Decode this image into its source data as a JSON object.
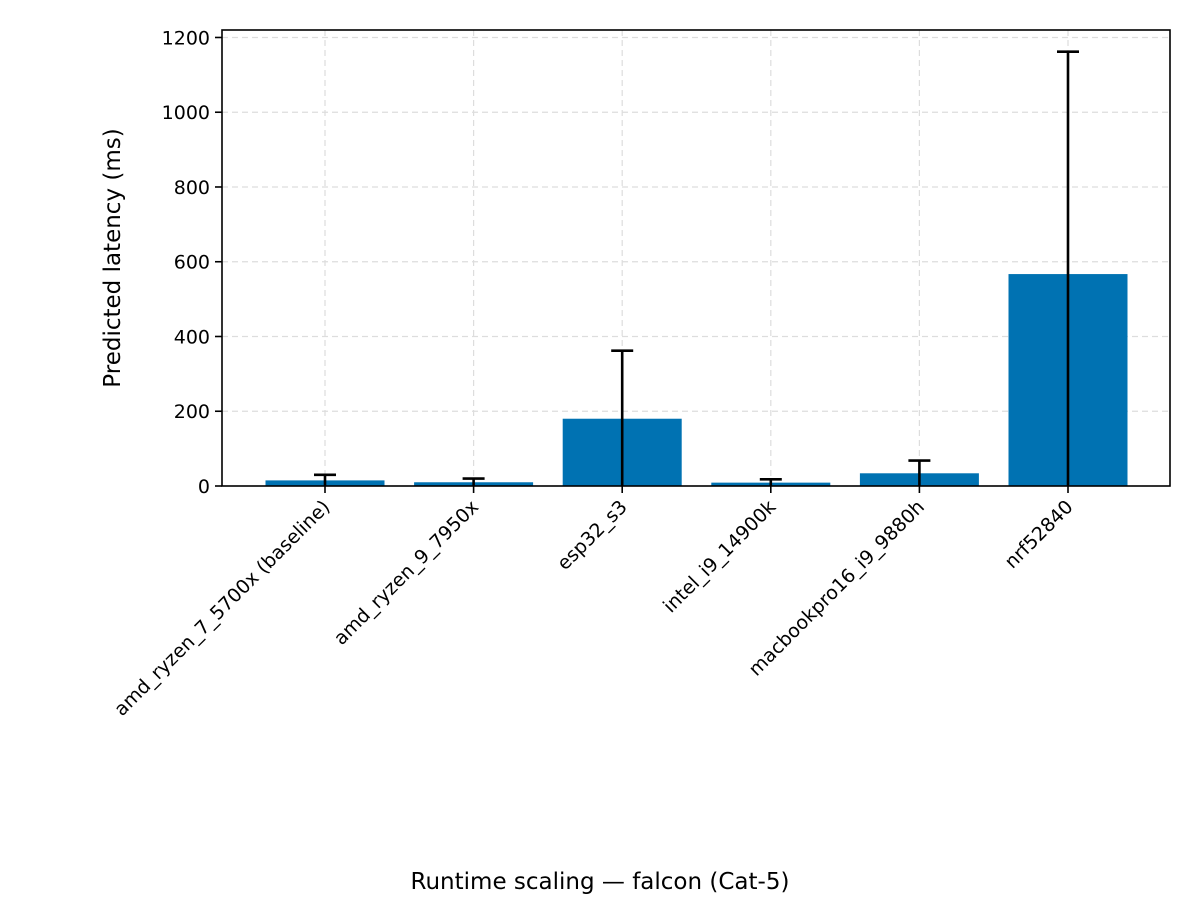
{
  "chart_data": {
    "type": "bar",
    "title": "",
    "caption": "Runtime scaling — falcon (Cat-5)",
    "xlabel": "",
    "ylabel": "Predicted latency (ms)",
    "categories": [
      "amd_ryzen_7_5700x (baseline)",
      "amd_ryzen_9_7950x",
      "esp32_s3",
      "intel_i9_14900k",
      "macbookpro16_i9_9880h",
      "nrf52840"
    ],
    "series": [
      {
        "values": [
          15,
          10,
          180,
          9,
          34,
          567
        ],
        "error_upper": [
          30,
          20,
          362,
          18,
          68,
          1162
        ]
      }
    ],
    "ylim": [
      0,
      1220
    ],
    "yticks": [
      0,
      200,
      400,
      600,
      800,
      1000,
      1200
    ],
    "grid": true,
    "bar_color": "#0072b2",
    "error_color": "#000000",
    "grid_color": "#dddddd"
  }
}
